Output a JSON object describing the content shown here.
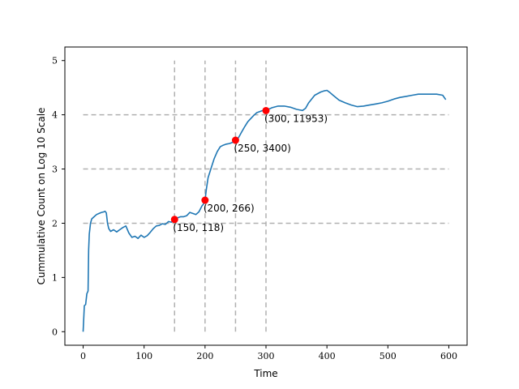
{
  "chart_data": {
    "type": "line",
    "xlabel": "Time",
    "ylabel": "Cummulative Count on Log 10 Scale",
    "xlim": [
      -30,
      630
    ],
    "ylim": [
      -0.25,
      5.25
    ],
    "xticks": [
      0,
      100,
      200,
      300,
      400,
      500,
      600
    ],
    "yticks": [
      0,
      1,
      2,
      3,
      4,
      5
    ],
    "grid": false,
    "colors": {
      "line": "#1f77b4",
      "markers": "#ff0000",
      "guides": "#b0b0b0"
    },
    "series": [
      {
        "x": [
          0,
          2,
          4,
          6,
          8,
          9,
          10,
          12,
          14,
          18,
          22,
          26,
          30,
          34,
          36,
          38,
          40,
          42,
          45,
          50,
          55,
          60,
          65,
          70,
          75,
          80,
          85,
          90,
          95,
          100,
          105,
          110,
          115,
          120,
          125,
          130,
          135,
          140,
          145,
          150,
          155,
          160,
          165,
          170,
          175,
          180,
          185,
          190,
          195,
          198,
          200,
          202,
          205,
          210,
          215,
          220,
          225,
          230,
          235,
          240,
          245,
          250,
          255,
          260,
          265,
          270,
          275,
          280,
          285,
          290,
          295,
          300,
          310,
          320,
          330,
          340,
          350,
          355,
          360,
          365,
          370,
          380,
          390,
          395,
          400,
          405,
          410,
          420,
          430,
          440,
          450,
          460,
          470,
          480,
          490,
          500,
          510,
          520,
          530,
          540,
          550,
          560,
          570,
          580,
          590,
          595
        ],
        "y": [
          0.0,
          0.48,
          0.5,
          0.7,
          0.75,
          1.5,
          1.8,
          2.0,
          2.08,
          2.12,
          2.16,
          2.18,
          2.2,
          2.21,
          2.22,
          2.19,
          2.0,
          1.9,
          1.85,
          1.88,
          1.84,
          1.88,
          1.92,
          1.95,
          1.82,
          1.74,
          1.76,
          1.72,
          1.78,
          1.74,
          1.77,
          1.83,
          1.9,
          1.95,
          1.96,
          1.99,
          1.98,
          2.03,
          2.02,
          2.07,
          2.1,
          2.12,
          2.12,
          2.14,
          2.2,
          2.18,
          2.16,
          2.21,
          2.32,
          2.36,
          2.42,
          2.62,
          2.84,
          3.02,
          3.19,
          3.32,
          3.41,
          3.44,
          3.46,
          3.47,
          3.49,
          3.53,
          3.58,
          3.68,
          3.78,
          3.87,
          3.93,
          3.99,
          4.04,
          4.06,
          4.08,
          4.08,
          4.13,
          4.16,
          4.16,
          4.14,
          4.1,
          4.09,
          4.08,
          4.12,
          4.22,
          4.36,
          4.42,
          4.44,
          4.45,
          4.41,
          4.36,
          4.27,
          4.22,
          4.18,
          4.15,
          4.16,
          4.18,
          4.2,
          4.22,
          4.25,
          4.29,
          4.32,
          4.34,
          4.36,
          4.38,
          4.38,
          4.38,
          4.38,
          4.36,
          4.28
        ]
      }
    ],
    "vertical_guides": [
      150,
      200,
      250,
      300
    ],
    "horizontal_guides": [
      2,
      3,
      4
    ],
    "points": [
      {
        "x": 150,
        "y": 2.07,
        "label": "(150, 118)"
      },
      {
        "x": 200,
        "y": 2.425,
        "label": "(200, 266)"
      },
      {
        "x": 250,
        "y": 3.531,
        "label": "(250, 3400)"
      },
      {
        "x": 300,
        "y": 4.077,
        "label": "(300, 11953)"
      }
    ]
  }
}
